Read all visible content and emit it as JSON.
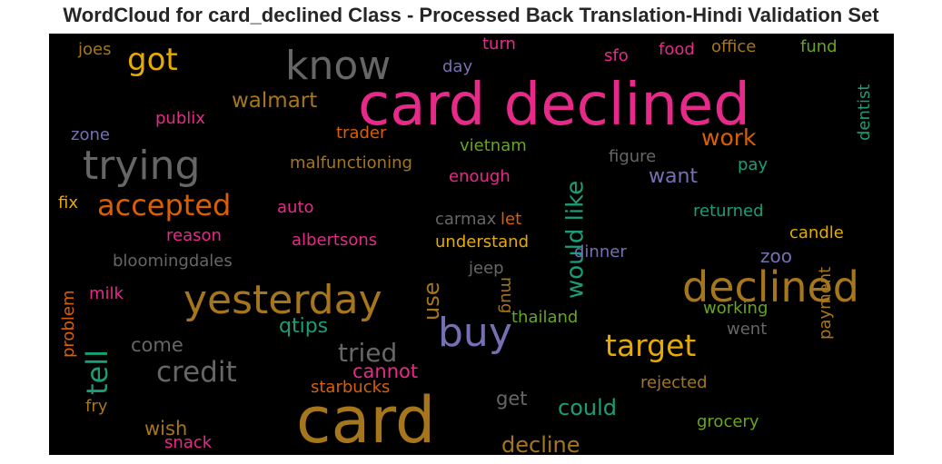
{
  "chart_data": {
    "type": "wordcloud",
    "title": "WordCloud for card_declined Class - Processed Back Translation-Hindi Validation Set",
    "background": "#000000",
    "words": [
      {
        "text": "card declined",
        "color": "#e7298a",
        "orientation": "horizontal"
      },
      {
        "text": "card",
        "color": "#a6761d",
        "orientation": "horizontal"
      },
      {
        "text": "declined",
        "color": "#a6761d",
        "orientation": "horizontal"
      },
      {
        "text": "yesterday",
        "color": "#a6761d",
        "orientation": "horizontal"
      },
      {
        "text": "know",
        "color": "#666666",
        "orientation": "horizontal"
      },
      {
        "text": "trying",
        "color": "#666666",
        "orientation": "horizontal"
      },
      {
        "text": "buy",
        "color": "#7570b3",
        "orientation": "horizontal"
      },
      {
        "text": "got",
        "color": "#e6ab02",
        "orientation": "horizontal"
      },
      {
        "text": "accepted",
        "color": "#d95f02",
        "orientation": "horizontal"
      },
      {
        "text": "target",
        "color": "#e6ab02",
        "orientation": "horizontal"
      },
      {
        "text": "credit",
        "color": "#666666",
        "orientation": "horizontal"
      },
      {
        "text": "tell",
        "color": "#1b9e77",
        "orientation": "vertical"
      },
      {
        "text": "would like",
        "color": "#1b9e77",
        "orientation": "vertical"
      },
      {
        "text": "tried",
        "color": "#666666",
        "orientation": "horizontal"
      },
      {
        "text": "work",
        "color": "#d95f02",
        "orientation": "horizontal"
      },
      {
        "text": "walmart",
        "color": "#a6761d",
        "orientation": "horizontal"
      },
      {
        "text": "use",
        "color": "#a6761d",
        "orientation": "vertical"
      },
      {
        "text": "could",
        "color": "#1b9e77",
        "orientation": "horizontal"
      },
      {
        "text": "decline",
        "color": "#a6761d",
        "orientation": "horizontal"
      },
      {
        "text": "want",
        "color": "#7570b3",
        "orientation": "horizontal"
      },
      {
        "text": "qtips",
        "color": "#1b9e77",
        "orientation": "horizontal"
      },
      {
        "text": "come",
        "color": "#666666",
        "orientation": "horizontal"
      },
      {
        "text": "cannot",
        "color": "#e7298a",
        "orientation": "horizontal"
      },
      {
        "text": "wish",
        "color": "#a6761d",
        "orientation": "horizontal"
      },
      {
        "text": "get",
        "color": "#666666",
        "orientation": "horizontal"
      },
      {
        "text": "zoo",
        "color": "#7570b3",
        "orientation": "horizontal"
      },
      {
        "text": "malfunctioning",
        "color": "#a6761d",
        "orientation": "horizontal"
      },
      {
        "text": "publix",
        "color": "#e7298a",
        "orientation": "horizontal"
      },
      {
        "text": "trader",
        "color": "#d95f02",
        "orientation": "horizontal"
      },
      {
        "text": "vietnam",
        "color": "#66a61e",
        "orientation": "horizontal"
      },
      {
        "text": "enough",
        "color": "#e7298a",
        "orientation": "horizontal"
      },
      {
        "text": "figure",
        "color": "#666666",
        "orientation": "horizontal"
      },
      {
        "text": "pay",
        "color": "#1b9e77",
        "orientation": "horizontal"
      },
      {
        "text": "dentist",
        "color": "#1b9e77",
        "orientation": "vertical"
      },
      {
        "text": "joes",
        "color": "#a6761d",
        "orientation": "horizontal"
      },
      {
        "text": "turn",
        "color": "#e7298a",
        "orientation": "horizontal"
      },
      {
        "text": "food",
        "color": "#e7298a",
        "orientation": "horizontal"
      },
      {
        "text": "office",
        "color": "#a6761d",
        "orientation": "horizontal"
      },
      {
        "text": "fund",
        "color": "#66a61e",
        "orientation": "horizontal"
      },
      {
        "text": "day",
        "color": "#7570b3",
        "orientation": "horizontal"
      },
      {
        "text": "sfo",
        "color": "#e7298a",
        "orientation": "horizontal"
      },
      {
        "text": "zone",
        "color": "#7570b3",
        "orientation": "horizontal"
      },
      {
        "text": "fix",
        "color": "#e6ab02",
        "orientation": "horizontal"
      },
      {
        "text": "auto",
        "color": "#e7298a",
        "orientation": "horizontal"
      },
      {
        "text": "carmax",
        "color": "#666666",
        "orientation": "horizontal"
      },
      {
        "text": "let",
        "color": "#d95f02",
        "orientation": "horizontal"
      },
      {
        "text": "returned",
        "color": "#1b9e77",
        "orientation": "horizontal"
      },
      {
        "text": "candle",
        "color": "#e6ab02",
        "orientation": "horizontal"
      },
      {
        "text": "reason",
        "color": "#e7298a",
        "orientation": "horizontal"
      },
      {
        "text": "albertsons",
        "color": "#e7298a",
        "orientation": "horizontal"
      },
      {
        "text": "understand",
        "color": "#e6ab02",
        "orientation": "horizontal"
      },
      {
        "text": "dinner",
        "color": "#7570b3",
        "orientation": "horizontal"
      },
      {
        "text": "bloomingdales",
        "color": "#666666",
        "orientation": "horizontal"
      },
      {
        "text": "jeep",
        "color": "#666666",
        "orientation": "horizontal"
      },
      {
        "text": "mug",
        "color": "#a6761d",
        "orientation": "vertical-down"
      },
      {
        "text": "milk",
        "color": "#e7298a",
        "orientation": "horizontal"
      },
      {
        "text": "thailand",
        "color": "#66a61e",
        "orientation": "horizontal"
      },
      {
        "text": "working",
        "color": "#66a61e",
        "orientation": "horizontal"
      },
      {
        "text": "went",
        "color": "#666666",
        "orientation": "horizontal"
      },
      {
        "text": "payment",
        "color": "#a6761d",
        "orientation": "vertical"
      },
      {
        "text": "rejected",
        "color": "#a6761d",
        "orientation": "horizontal"
      },
      {
        "text": "starbucks",
        "color": "#d95f02",
        "orientation": "horizontal"
      },
      {
        "text": "problem",
        "color": "#d95f02",
        "orientation": "vertical"
      },
      {
        "text": "fry",
        "color": "#a6761d",
        "orientation": "horizontal"
      },
      {
        "text": "grocery",
        "color": "#66a61e",
        "orientation": "horizontal"
      },
      {
        "text": "snack",
        "color": "#e7298a",
        "orientation": "horizontal"
      }
    ]
  }
}
